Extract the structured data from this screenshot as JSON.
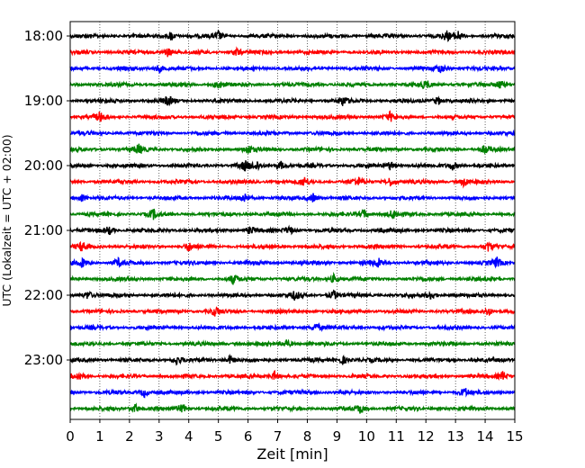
{
  "chart_data": {
    "type": "line",
    "title": "",
    "xlabel": "Zeit  [min]",
    "ylabel": "UTC (Lokalzeit = UTC + 02:00)",
    "xlim": [
      0,
      15
    ],
    "x_ticks": [
      "0",
      "1",
      "2",
      "3",
      "4",
      "5",
      "6",
      "7",
      "8",
      "9",
      "10",
      "11",
      "12",
      "13",
      "14",
      "15"
    ],
    "y_tick_labels": [
      "18:00",
      "19:00",
      "20:00",
      "21:00",
      "22:00",
      "23:00"
    ],
    "grid_x": true,
    "trace_colors": [
      "#000000",
      "#ff0000",
      "#0000ff",
      "#008000"
    ],
    "traces": [
      {
        "start": "18:00",
        "color": "#000000",
        "events": [
          3.4,
          5.0,
          12.7,
          13.1
        ]
      },
      {
        "start": "18:15",
        "color": "#ff0000",
        "events": [
          3.3,
          5.6
        ]
      },
      {
        "start": "18:30",
        "color": "#0000ff",
        "events": [
          3.0,
          12.5
        ]
      },
      {
        "start": "18:45",
        "color": "#008000",
        "events": [
          5.0,
          12.0,
          14.5
        ]
      },
      {
        "start": "19:00",
        "color": "#000000",
        "events": [
          3.3,
          9.2,
          12.4
        ]
      },
      {
        "start": "19:15",
        "color": "#ff0000",
        "events": [
          1.0,
          10.8
        ]
      },
      {
        "start": "19:30",
        "color": "#0000ff",
        "events": []
      },
      {
        "start": "19:45",
        "color": "#008000",
        "events": [
          2.3,
          6.0,
          14.0
        ]
      },
      {
        "start": "20:00",
        "color": "#000000",
        "events": [
          5.9,
          6.3,
          7.1,
          10.8,
          12.9
        ]
      },
      {
        "start": "20:15",
        "color": "#ff0000",
        "events": [
          7.9,
          9.7,
          10.8,
          13.3
        ]
      },
      {
        "start": "20:30",
        "color": "#0000ff",
        "events": [
          0.4,
          5.9,
          8.2
        ]
      },
      {
        "start": "20:45",
        "color": "#008000",
        "events": [
          2.8,
          9.9,
          10.9
        ]
      },
      {
        "start": "21:00",
        "color": "#000000",
        "events": [
          1.3,
          6.1,
          7.4
        ]
      },
      {
        "start": "21:15",
        "color": "#ff0000",
        "events": [
          0.4,
          4.0,
          14.1
        ]
      },
      {
        "start": "21:30",
        "color": "#0000ff",
        "events": [
          0.4,
          1.6,
          10.4,
          14.4
        ]
      },
      {
        "start": "21:45",
        "color": "#008000",
        "events": [
          5.5,
          8.9
        ]
      },
      {
        "start": "22:00",
        "color": "#000000",
        "events": [
          0.6,
          7.6,
          8.9,
          12.2
        ]
      },
      {
        "start": "22:15",
        "color": "#ff0000",
        "events": [
          4.9,
          14.1
        ]
      },
      {
        "start": "22:30",
        "color": "#0000ff",
        "events": [
          8.3
        ]
      },
      {
        "start": "22:45",
        "color": "#008000",
        "events": [
          7.3
        ]
      },
      {
        "start": "23:00",
        "color": "#000000",
        "events": [
          3.6,
          5.4,
          9.2
        ]
      },
      {
        "start": "23:15",
        "color": "#ff0000",
        "events": [
          0.3,
          6.9,
          14.6
        ]
      },
      {
        "start": "23:30",
        "color": "#0000ff",
        "events": [
          2.5,
          13.3
        ]
      },
      {
        "start": "23:45",
        "color": "#008000",
        "events": [
          2.2,
          3.8,
          9.8
        ]
      }
    ]
  }
}
